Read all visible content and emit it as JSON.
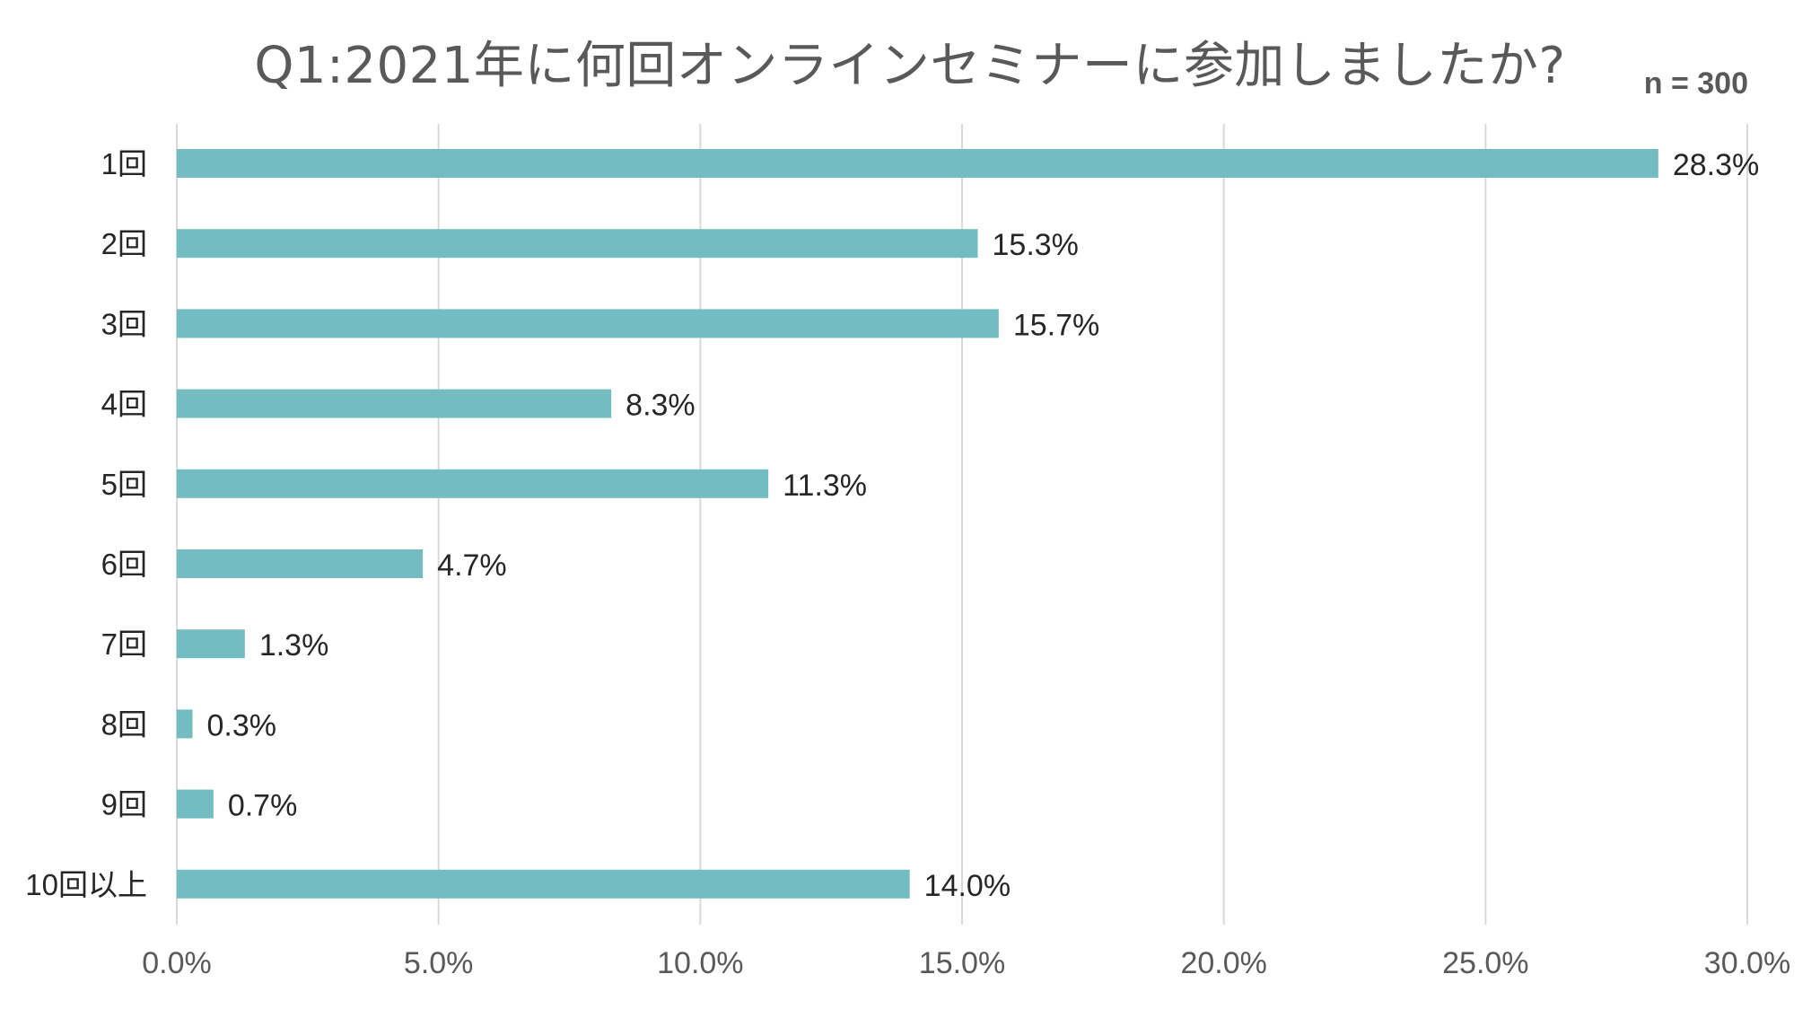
{
  "title": "Q1:2021年に何回オンラインセミナーに参加しましたか?",
  "note": "n = 300",
  "colors": {
    "bar": "#72BCC2",
    "grid": "#D9D9D9",
    "text": "#595959",
    "label": "#262626"
  },
  "chart_data": {
    "type": "bar",
    "orientation": "horizontal",
    "categories": [
      "1回",
      "2回",
      "3回",
      "4回",
      "5回",
      "6回",
      "7回",
      "8回",
      "9回",
      "10回以上"
    ],
    "values": [
      28.3,
      15.3,
      15.7,
      8.3,
      11.3,
      4.7,
      1.3,
      0.3,
      0.7,
      14.0
    ],
    "value_labels": [
      "28.3%",
      "15.3%",
      "15.7%",
      "8.3%",
      "11.3%",
      "4.7%",
      "1.3%",
      "0.3%",
      "0.7%",
      "14.0%"
    ],
    "xlim": [
      0,
      30
    ],
    "x_ticks": [
      0,
      5,
      10,
      15,
      20,
      25,
      30
    ],
    "x_tick_labels": [
      "0.0%",
      "5.0%",
      "10.0%",
      "15.0%",
      "20.0%",
      "25.0%",
      "30.0%"
    ],
    "grid": true,
    "legend": "none"
  }
}
